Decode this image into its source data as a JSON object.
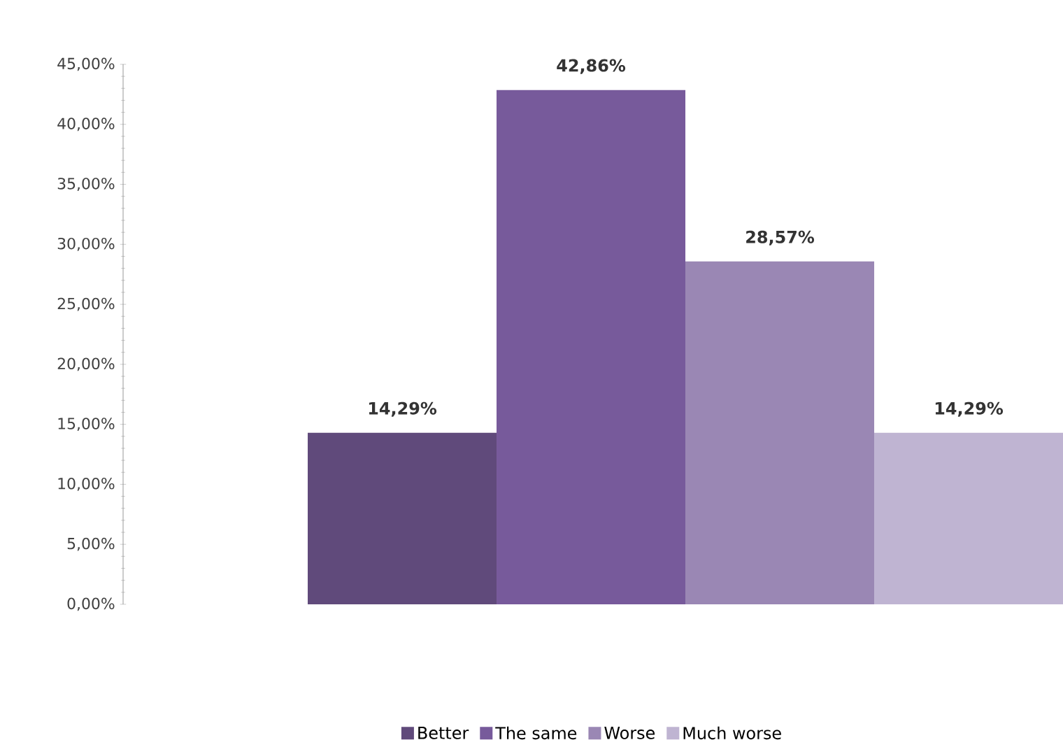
{
  "chart_data": {
    "type": "bar",
    "categories": [
      null
    ],
    "series": [
      {
        "name": "Better",
        "color": "#604a7b",
        "values": [
          14.29
        ],
        "value_labels": [
          "14,29%"
        ]
      },
      {
        "name": "The same",
        "color": "#775a9b",
        "values": [
          42.86
        ],
        "value_labels": [
          "42,86%"
        ]
      },
      {
        "name": "Worse",
        "color": "#9a87b4",
        "values": [
          28.57
        ],
        "value_labels": [
          "28,57%"
        ]
      },
      {
        "name": "Much worse",
        "color": "#bfb4d2",
        "values": [
          14.29
        ],
        "value_labels": [
          "14,29%"
        ]
      }
    ],
    "ylim": [
      0,
      45
    ],
    "yticks": [
      {
        "value": 0,
        "label": "0,00%"
      },
      {
        "value": 5,
        "label": "5,00%"
      },
      {
        "value": 10,
        "label": "10,00%"
      },
      {
        "value": 15,
        "label": "15,00%"
      },
      {
        "value": 20,
        "label": "20,00%"
      },
      {
        "value": 25,
        "label": "25,00%"
      },
      {
        "value": 30,
        "label": "30,00%"
      },
      {
        "value": 35,
        "label": "35,00%"
      },
      {
        "value": 40,
        "label": "40,00%"
      },
      {
        "value": 45,
        "label": "45,00%"
      }
    ],
    "grid": false,
    "legend": "bottom"
  }
}
